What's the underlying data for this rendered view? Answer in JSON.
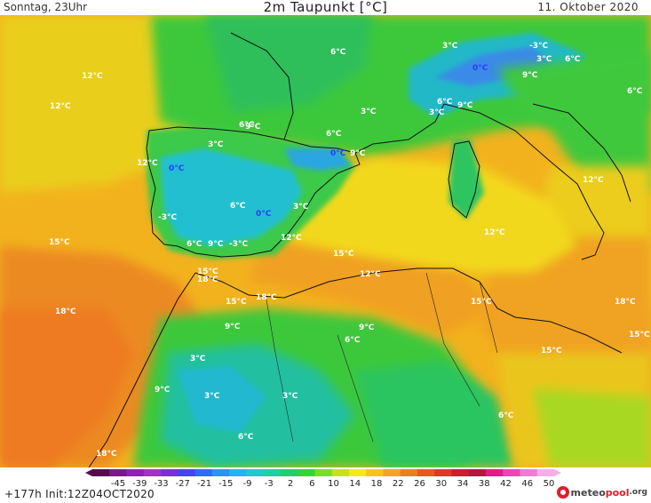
{
  "header": {
    "valid_time": "Sonntag, 23Uhr",
    "title": "2m Taupunkt [°C]",
    "date": "11. Oktober 2020"
  },
  "footer": {
    "run_info": "+177h Init:12Z04OCT2020",
    "logo": {
      "part1": "meteo",
      "part2": "pool",
      "part3": ".org"
    }
  },
  "colorbar": {
    "ticks": [
      "-45",
      "-39",
      "-33",
      "-27",
      "-21",
      "-15",
      "-9",
      "-3",
      "2",
      "6",
      "10",
      "14",
      "18",
      "22",
      "26",
      "30",
      "34",
      "38",
      "42",
      "46",
      "50"
    ],
    "colors": [
      "#5a0a4a",
      "#7a1a8a",
      "#8f22b4",
      "#a232cc",
      "#7a2ee0",
      "#4444f0",
      "#2f6bf4",
      "#2e92f2",
      "#22b4ee",
      "#22c8d0",
      "#1fd0a0",
      "#1ecf6e",
      "#37d23a",
      "#7adc24",
      "#c6e21b",
      "#f4e81c",
      "#f4c61c",
      "#f2a424",
      "#ec7e22",
      "#e65a22",
      "#de3a26",
      "#cc1e2c",
      "#b81442",
      "#e21a8a",
      "#ee44b4",
      "#f27ad2",
      "#f6aee6"
    ]
  },
  "map_labels": [
    {
      "text": "6°C",
      "color": "white"
    },
    {
      "text": "3°C",
      "color": "white"
    },
    {
      "text": "-3°C",
      "color": "white"
    },
    {
      "text": "3°C",
      "color": "white"
    },
    {
      "text": "6°C",
      "color": "white"
    },
    {
      "text": "0°C",
      "color": "blue"
    },
    {
      "text": "9°C",
      "color": "white"
    },
    {
      "text": "6°C",
      "color": "white"
    },
    {
      "text": "12°C",
      "color": "white"
    },
    {
      "text": "12°C",
      "color": "white"
    },
    {
      "text": "6°C",
      "color": "white"
    },
    {
      "text": "9°C",
      "color": "white"
    },
    {
      "text": "3°C",
      "color": "white"
    },
    {
      "text": "6°C",
      "color": "white"
    },
    {
      "text": "3°C",
      "color": "white"
    },
    {
      "text": "6°C",
      "color": "white"
    },
    {
      "text": "9°C",
      "color": "white"
    },
    {
      "text": "3°C",
      "color": "white"
    },
    {
      "text": "12°C",
      "color": "white"
    },
    {
      "text": "0°C",
      "color": "blue"
    },
    {
      "text": "9°C",
      "color": "white"
    },
    {
      "text": "0°C",
      "color": "blue"
    },
    {
      "text": "6°C",
      "color": "white"
    },
    {
      "text": "-3°C",
      "color": "white"
    },
    {
      "text": "0°C",
      "color": "blue"
    },
    {
      "text": "3°C",
      "color": "white"
    },
    {
      "text": "12°C",
      "color": "white"
    },
    {
      "text": "15°C",
      "color": "white"
    },
    {
      "text": "6°C",
      "color": "white"
    },
    {
      "text": "9°C",
      "color": "white"
    },
    {
      "text": "-3°C",
      "color": "white"
    },
    {
      "text": "12°C",
      "color": "white"
    },
    {
      "text": "15°C",
      "color": "white"
    },
    {
      "text": "15°C",
      "color": "white"
    },
    {
      "text": "18°C",
      "color": "white"
    },
    {
      "text": "12°C",
      "color": "white"
    },
    {
      "text": "12°C",
      "color": "white"
    },
    {
      "text": "18°C",
      "color": "white"
    },
    {
      "text": "15°C",
      "color": "white"
    },
    {
      "text": "18°C",
      "color": "white"
    },
    {
      "text": "9°C",
      "color": "white"
    },
    {
      "text": "9°C",
      "color": "white"
    },
    {
      "text": "6°C",
      "color": "white"
    },
    {
      "text": "15°C",
      "color": "white"
    },
    {
      "text": "18°C",
      "color": "white"
    },
    {
      "text": "15°C",
      "color": "white"
    },
    {
      "text": "15°C",
      "color": "white"
    },
    {
      "text": "3°C",
      "color": "white"
    },
    {
      "text": "9°C",
      "color": "white"
    },
    {
      "text": "3°C",
      "color": "white"
    },
    {
      "text": "3°C",
      "color": "white"
    },
    {
      "text": "6°C",
      "color": "white"
    },
    {
      "text": "6°C",
      "color": "white"
    },
    {
      "text": "18°C",
      "color": "white"
    }
  ]
}
